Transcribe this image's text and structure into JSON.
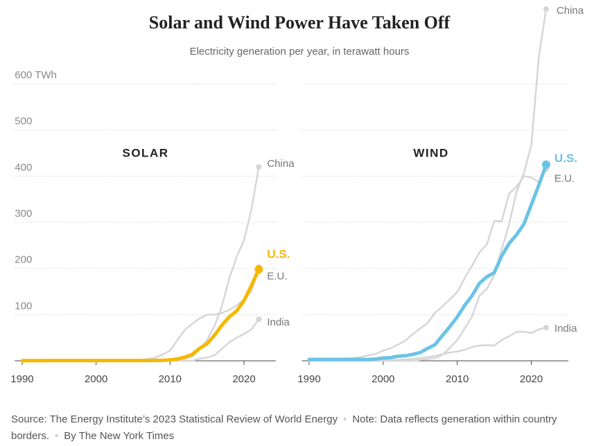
{
  "title": "Solar and Wind Power Have Taken Off",
  "subtitle": "Electricity generation per year, in terawatt hours",
  "footer": {
    "source": "Source: The Energy Institute’s 2023 Statistical Review of World Energy",
    "note": "Note: Data reflects generation within country borders.",
    "credit": "By The New York Times"
  },
  "chart_data": [
    {
      "type": "line",
      "title": "SOLAR",
      "x": [
        1990,
        1991,
        1992,
        1993,
        1994,
        1995,
        1996,
        1997,
        1998,
        1999,
        2000,
        2001,
        2002,
        2003,
        2004,
        2005,
        2006,
        2007,
        2008,
        2009,
        2010,
        2011,
        2012,
        2013,
        2014,
        2015,
        2016,
        2017,
        2018,
        2019,
        2020,
        2021,
        2022
      ],
      "xlim": [
        1989,
        2024
      ],
      "xticks": [
        1990,
        2000,
        2010,
        2020
      ],
      "ylim": [
        0,
        765
      ],
      "yticks": [
        100,
        200,
        300,
        400,
        500,
        {
          "value": 600,
          "label": "600 TWh"
        }
      ],
      "show_ytick_labels": true,
      "grid": true,
      "series": [
        {
          "name": "China",
          "color": "#d6d6d6",
          "values": [
            0,
            0,
            0,
            0,
            0,
            0,
            0,
            0,
            0,
            0,
            0,
            0,
            0,
            0,
            0,
            0,
            0,
            0,
            0,
            0,
            1,
            3,
            4,
            9,
            24,
            45,
            75,
            118,
            178,
            225,
            261,
            327,
            420
          ]
        },
        {
          "name": "E.U.",
          "color": "#d6d6d6",
          "values": [
            0,
            0,
            0,
            0,
            0,
            0,
            0,
            0,
            0,
            0,
            0,
            0,
            0,
            0,
            0,
            1.5,
            2.5,
            4,
            7,
            14,
            22,
            45,
            67,
            80,
            92,
            100,
            100,
            104,
            110,
            120,
            133,
            150,
            203
          ]
        },
        {
          "name": "India",
          "color": "#d6d6d6",
          "values": [
            0,
            0,
            0,
            0,
            0,
            0,
            0,
            0,
            0,
            0,
            0,
            0,
            0,
            0,
            0,
            0,
            0,
            0,
            0,
            0,
            0,
            0,
            0,
            0,
            5,
            7,
            12,
            26,
            40,
            50,
            58,
            68,
            90
          ]
        },
        {
          "name": "U.S.",
          "color": "#f5b800",
          "highlight": true,
          "values": [
            0.4,
            0.4,
            0.4,
            0.5,
            0.5,
            0.5,
            0.5,
            0.5,
            0.5,
            0.5,
            0.5,
            0.5,
            0.6,
            0.5,
            0.6,
            0.6,
            0.5,
            0.6,
            0.9,
            1,
            2,
            4,
            8,
            14,
            27,
            37,
            55,
            77,
            95,
            108,
            130,
            163,
            198
          ]
        }
      ]
    },
    {
      "type": "line",
      "title": "WIND",
      "x": [
        1990,
        1991,
        1992,
        1993,
        1994,
        1995,
        1996,
        1997,
        1998,
        1999,
        2000,
        2001,
        2002,
        2003,
        2004,
        2005,
        2006,
        2007,
        2008,
        2009,
        2010,
        2011,
        2012,
        2013,
        2014,
        2015,
        2016,
        2017,
        2018,
        2019,
        2020,
        2021,
        2022
      ],
      "xlim": [
        1989,
        2024
      ],
      "xticks": [
        1990,
        2000,
        2010,
        2020
      ],
      "ylim": [
        0,
        765
      ],
      "yticks": [
        100,
        200,
        300,
        400,
        500,
        600
      ],
      "show_ytick_labels": false,
      "grid": true,
      "series": [
        {
          "name": "China",
          "color": "#d6d6d6",
          "values": [
            0,
            0,
            0,
            0,
            0,
            0,
            0,
            0,
            0,
            0,
            0,
            0,
            0,
            0,
            0,
            2,
            4,
            6,
            13,
            28,
            45,
            70,
            96,
            141,
            156,
            186,
            241,
            295,
            366,
            406,
            467,
            656,
            762
          ]
        },
        {
          "name": "E.U.",
          "color": "#d6d6d6",
          "values": [
            1,
            1,
            2,
            3,
            4,
            5,
            6,
            8,
            12,
            15,
            22,
            27,
            35,
            44,
            58,
            70,
            82,
            104,
            118,
            133,
            149,
            179,
            206,
            235,
            252,
            303,
            302,
            362,
            377,
            400,
            397,
            387,
            415
          ]
        },
        {
          "name": "India",
          "color": "#d6d6d6",
          "values": [
            0,
            0,
            0,
            0,
            0,
            1,
            1,
            1,
            1,
            1,
            2,
            2,
            2,
            3,
            4,
            6,
            8,
            11,
            14,
            18,
            20,
            24,
            30,
            33,
            34,
            33,
            45,
            53,
            63,
            63,
            60,
            68,
            72
          ]
        },
        {
          "name": "U.S.",
          "color": "#6cc3e6",
          "highlight": true,
          "values": [
            3,
            3,
            3,
            3,
            3,
            3,
            3,
            3,
            3,
            4,
            6,
            7,
            10,
            11,
            14,
            18,
            27,
            35,
            55,
            74,
            95,
            120,
            141,
            168,
            182,
            191,
            227,
            254,
            273,
            296,
            338,
            380,
            425
          ]
        }
      ]
    }
  ]
}
